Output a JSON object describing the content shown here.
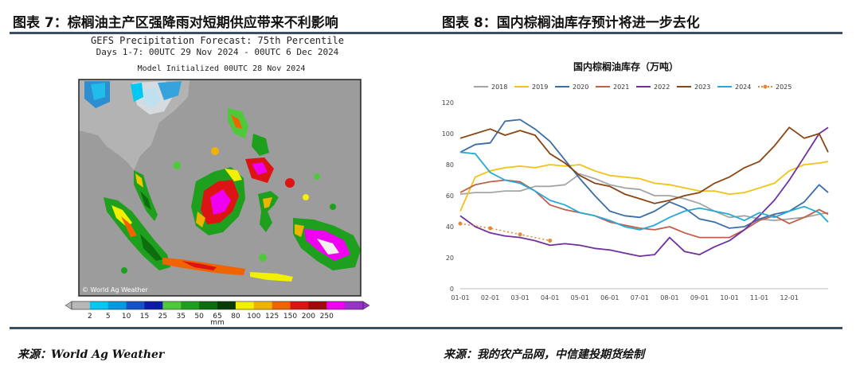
{
  "left_panel": {
    "title": "图表 7：棕榈油主产区强降雨对短期供应带来不利影响",
    "map": {
      "heading_line1": "GEFS Precipitation Forecast: 75th Percentile",
      "heading_line2": "Days 1-7: 00UTC 29 Nov 2024 - 00UTC 6 Dec 2024",
      "heading_line3": "Model Initialized 00UTC 28 Nov 2024",
      "watermark": "© World Ag Weather",
      "colorbar_ticks": [
        "2",
        "5",
        "10",
        "15",
        "25",
        "35",
        "50",
        "65",
        "80",
        "100",
        "125",
        "150",
        "200",
        "250"
      ],
      "colorbar_colors": [
        "#b8b8b8",
        "#00c8f0",
        "#009ae0",
        "#1452c8",
        "#0c1aa8",
        "#50c83c",
        "#1ea01e",
        "#0c6e0c",
        "#073c07",
        "#f0f000",
        "#f0b400",
        "#f06400",
        "#dc1414",
        "#a00a0a",
        "#f000f0",
        "#9632c8"
      ],
      "colorbar_unit": "mm"
    },
    "source": "来源：World Ag Weather"
  },
  "right_panel": {
    "title": "图表 8：国内棕榈油库存预计将进一步去化",
    "source": "来源：我的农产品网，中信建投期货绘制"
  },
  "chart_data": {
    "type": "line",
    "title": "国内棕榈油库存（万吨）",
    "x": [
      "01-01",
      "02-01",
      "03-01",
      "04-01",
      "05-01",
      "06-01",
      "07-01",
      "08-01",
      "09-01",
      "10-01",
      "11-01",
      "12-01"
    ],
    "x_unit": "month",
    "xlim": [
      0,
      12.3
    ],
    "ylim": [
      0,
      120
    ],
    "yticks": [
      0,
      20,
      40,
      60,
      80,
      100,
      120
    ],
    "grid": false,
    "legend_position": "top",
    "series": [
      {
        "name": "2018",
        "color": "#a5a5a5",
        "dashed": false,
        "points": [
          [
            0.0,
            61
          ],
          [
            0.5,
            62
          ],
          [
            1.0,
            62
          ],
          [
            1.5,
            63
          ],
          [
            2.0,
            63
          ],
          [
            2.5,
            66
          ],
          [
            3.0,
            66
          ],
          [
            3.5,
            67
          ],
          [
            4.0,
            74
          ],
          [
            4.5,
            71
          ],
          [
            5.0,
            67
          ],
          [
            5.5,
            65
          ],
          [
            6.0,
            64
          ],
          [
            6.5,
            60
          ],
          [
            7.0,
            60
          ],
          [
            7.5,
            58
          ],
          [
            8.0,
            55
          ],
          [
            8.5,
            50
          ],
          [
            9.0,
            46
          ],
          [
            9.5,
            47
          ],
          [
            10.0,
            45
          ],
          [
            10.5,
            44
          ],
          [
            11.0,
            45
          ],
          [
            11.5,
            46
          ],
          [
            12.0,
            48
          ],
          [
            12.3,
            49
          ]
        ]
      },
      {
        "name": "2019",
        "color": "#f2c215",
        "dashed": false,
        "points": [
          [
            0.0,
            50
          ],
          [
            0.5,
            72
          ],
          [
            1.0,
            76
          ],
          [
            1.5,
            78
          ],
          [
            2.0,
            79
          ],
          [
            2.5,
            78
          ],
          [
            3.0,
            80
          ],
          [
            3.5,
            79
          ],
          [
            4.0,
            80
          ],
          [
            4.5,
            76
          ],
          [
            5.0,
            73
          ],
          [
            5.5,
            72
          ],
          [
            6.0,
            71
          ],
          [
            6.5,
            68
          ],
          [
            7.0,
            67
          ],
          [
            7.5,
            65
          ],
          [
            8.0,
            63
          ],
          [
            8.5,
            63
          ],
          [
            9.0,
            61
          ],
          [
            9.5,
            62
          ],
          [
            10.0,
            65
          ],
          [
            10.5,
            68
          ],
          [
            11.0,
            76
          ],
          [
            11.5,
            80
          ],
          [
            12.0,
            81
          ],
          [
            12.3,
            82
          ]
        ]
      },
      {
        "name": "2020",
        "color": "#3a6ea5",
        "dashed": false,
        "points": [
          [
            0.0,
            88
          ],
          [
            0.5,
            93
          ],
          [
            1.0,
            94
          ],
          [
            1.5,
            108
          ],
          [
            2.0,
            109
          ],
          [
            2.5,
            103
          ],
          [
            3.0,
            95
          ],
          [
            3.5,
            83
          ],
          [
            4.0,
            71
          ],
          [
            4.5,
            60
          ],
          [
            5.0,
            50
          ],
          [
            5.5,
            47
          ],
          [
            6.0,
            46
          ],
          [
            6.5,
            50
          ],
          [
            7.0,
            56
          ],
          [
            7.5,
            52
          ],
          [
            8.0,
            45
          ],
          [
            8.5,
            43
          ],
          [
            9.0,
            39
          ],
          [
            9.5,
            40
          ],
          [
            10.0,
            45
          ],
          [
            10.5,
            48
          ],
          [
            11.0,
            50
          ],
          [
            11.5,
            56
          ],
          [
            12.0,
            67
          ],
          [
            12.3,
            62
          ]
        ]
      },
      {
        "name": "2021",
        "color": "#c0604a",
        "dashed": false,
        "points": [
          [
            0.0,
            62
          ],
          [
            0.5,
            67
          ],
          [
            1.0,
            69
          ],
          [
            1.5,
            70
          ],
          [
            2.0,
            69
          ],
          [
            2.5,
            63
          ],
          [
            3.0,
            54
          ],
          [
            3.5,
            51
          ],
          [
            4.0,
            49
          ],
          [
            4.5,
            47
          ],
          [
            5.0,
            43
          ],
          [
            5.5,
            41
          ],
          [
            6.0,
            39
          ],
          [
            6.5,
            38
          ],
          [
            7.0,
            40
          ],
          [
            7.5,
            36
          ],
          [
            8.0,
            33
          ],
          [
            8.5,
            33
          ],
          [
            9.0,
            33
          ],
          [
            9.5,
            38
          ],
          [
            10.0,
            44
          ],
          [
            10.5,
            47
          ],
          [
            11.0,
            42
          ],
          [
            11.5,
            46
          ],
          [
            12.0,
            51
          ],
          [
            12.3,
            48
          ]
        ]
      },
      {
        "name": "2022",
        "color": "#7030a0",
        "dashed": false,
        "points": [
          [
            0.0,
            47
          ],
          [
            0.5,
            40
          ],
          [
            1.0,
            36
          ],
          [
            1.5,
            34
          ],
          [
            2.0,
            33
          ],
          [
            2.5,
            31
          ],
          [
            3.0,
            28
          ],
          [
            3.5,
            29
          ],
          [
            4.0,
            28
          ],
          [
            4.5,
            26
          ],
          [
            5.0,
            25
          ],
          [
            5.5,
            23
          ],
          [
            6.0,
            21
          ],
          [
            6.5,
            22
          ],
          [
            7.0,
            33
          ],
          [
            7.5,
            24
          ],
          [
            8.0,
            22
          ],
          [
            8.5,
            27
          ],
          [
            9.0,
            31
          ],
          [
            9.5,
            38
          ],
          [
            10.0,
            47
          ],
          [
            10.5,
            57
          ],
          [
            11.0,
            70
          ],
          [
            11.5,
            85
          ],
          [
            12.0,
            100
          ],
          [
            12.3,
            104
          ]
        ]
      },
      {
        "name": "2023",
        "color": "#8b4513",
        "dashed": false,
        "points": [
          [
            0.0,
            97
          ],
          [
            0.5,
            100
          ],
          [
            1.0,
            103
          ],
          [
            1.5,
            99
          ],
          [
            2.0,
            102
          ],
          [
            2.5,
            99
          ],
          [
            3.0,
            87
          ],
          [
            3.5,
            81
          ],
          [
            4.0,
            73
          ],
          [
            4.5,
            68
          ],
          [
            5.0,
            66
          ],
          [
            5.5,
            61
          ],
          [
            6.0,
            58
          ],
          [
            6.5,
            55
          ],
          [
            7.0,
            57
          ],
          [
            7.5,
            60
          ],
          [
            8.0,
            62
          ],
          [
            8.5,
            68
          ],
          [
            9.0,
            72
          ],
          [
            9.5,
            78
          ],
          [
            10.0,
            82
          ],
          [
            10.5,
            92
          ],
          [
            11.0,
            104
          ],
          [
            11.5,
            97
          ],
          [
            12.0,
            100
          ],
          [
            12.3,
            88
          ]
        ]
      },
      {
        "name": "2024",
        "color": "#26a9d6",
        "dashed": false,
        "points": [
          [
            0.0,
            88
          ],
          [
            0.5,
            87
          ],
          [
            1.0,
            75
          ],
          [
            1.5,
            70
          ],
          [
            2.0,
            68
          ],
          [
            2.5,
            63
          ],
          [
            3.0,
            57
          ],
          [
            3.5,
            54
          ],
          [
            4.0,
            49
          ],
          [
            4.5,
            47
          ],
          [
            5.0,
            44
          ],
          [
            5.5,
            40
          ],
          [
            6.0,
            38
          ],
          [
            6.5,
            41
          ],
          [
            7.0,
            46
          ],
          [
            7.5,
            50
          ],
          [
            8.0,
            52
          ],
          [
            8.5,
            50
          ],
          [
            9.0,
            48
          ],
          [
            9.5,
            44
          ],
          [
            10.0,
            49
          ],
          [
            10.5,
            46
          ],
          [
            11.0,
            50
          ],
          [
            11.5,
            53
          ],
          [
            12.0,
            49
          ],
          [
            12.3,
            43
          ]
        ]
      },
      {
        "name": "2025",
        "color": "#e8883a",
        "dashed": true,
        "points": [
          [
            0.0,
            42
          ],
          [
            1.0,
            39
          ],
          [
            2.0,
            35
          ],
          [
            3.0,
            31
          ]
        ]
      }
    ]
  }
}
